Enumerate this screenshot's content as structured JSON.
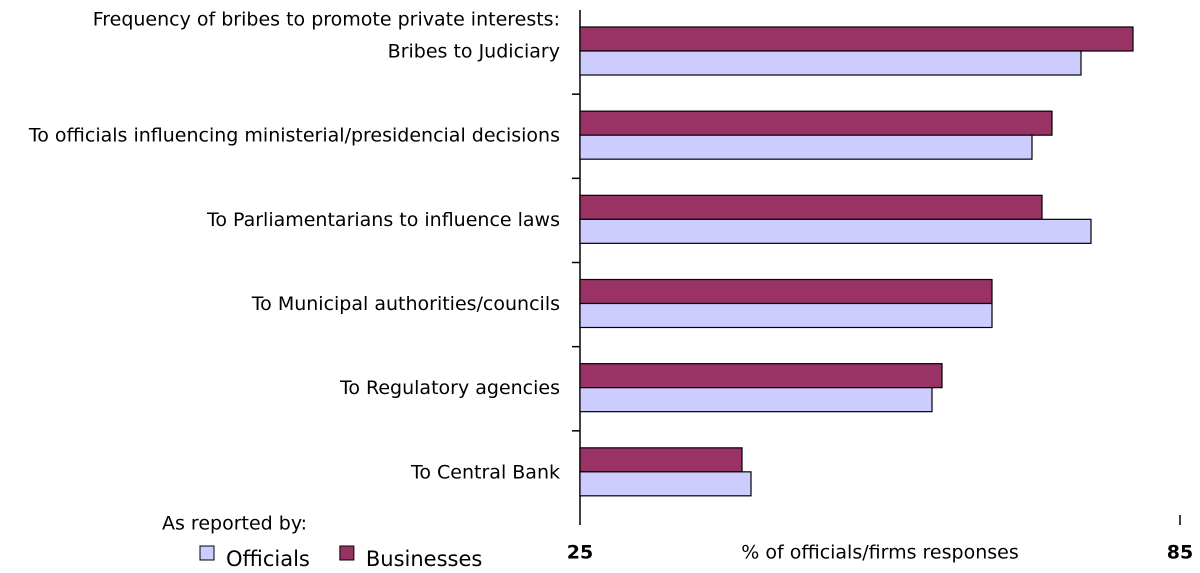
{
  "chart_data": {
    "type": "bar",
    "orientation": "horizontal",
    "title": "Frequency of bribes to promote private interests:",
    "x_label": "% of officials/firms responses",
    "legend_title": "As reported by:",
    "categories": [
      "Bribes to Judiciary",
      "To officials influencing ministerial/presidencial decisions",
      "To Parliamentarians to influence laws",
      "To Municipal authorities/councils",
      "To Regulatory agencies",
      "To Central Bank"
    ],
    "series": [
      {
        "name": "Officials",
        "color": "#ccccff",
        "values": [
          75.1,
          70.2,
          76.1,
          66.2,
          60.2,
          42.1
        ]
      },
      {
        "name": "Businesses",
        "color": "#993366",
        "values": [
          80.3,
          72.2,
          71.2,
          66.2,
          61.2,
          41.2
        ]
      }
    ],
    "xlim": [
      25,
      85
    ],
    "xticks": [
      25,
      85
    ],
    "grid": false
  }
}
